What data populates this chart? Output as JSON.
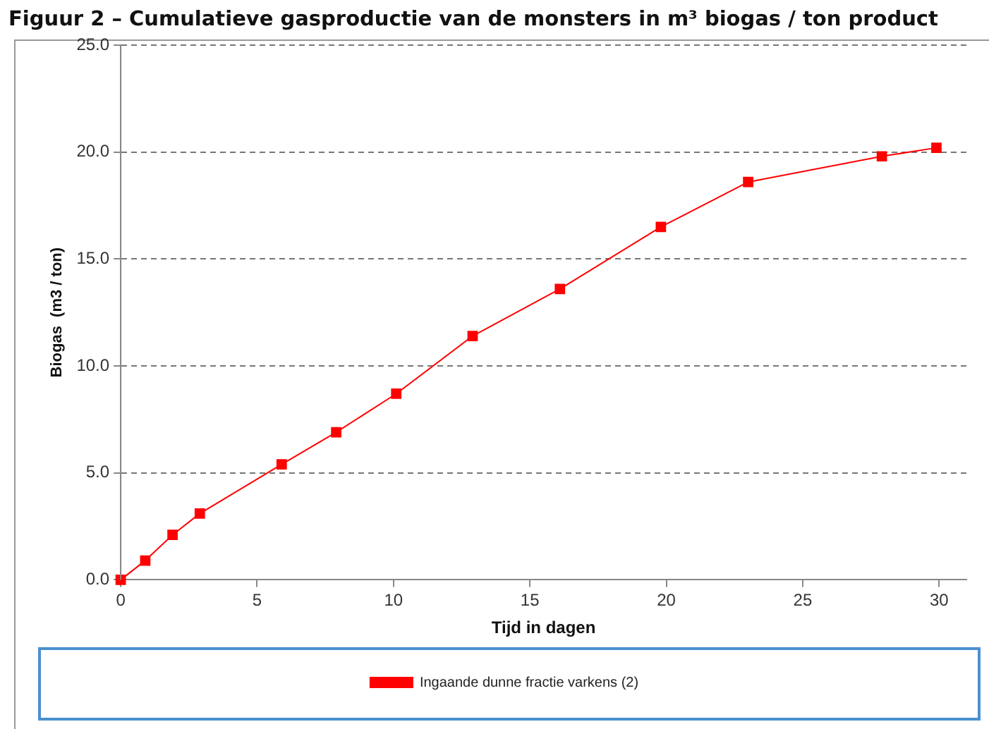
{
  "chart_data": {
    "type": "line",
    "title": "Figuur 2 – Cumulatieve gasproductie van de monsters in m³ biogas / ton product",
    "xlabel": "Tijd in dagen",
    "ylabel": "Biogas  (m3 / ton)",
    "x": [
      0,
      0.9,
      1.9,
      2.9,
      5.9,
      7.9,
      10.1,
      12.9,
      16.1,
      19.8,
      23.0,
      27.9,
      29.9
    ],
    "series": [
      {
        "name": "Ingaande dunne fractie varkens (2)",
        "color": "#ff0000",
        "values": [
          0,
          0.9,
          2.1,
          3.1,
          5.4,
          6.9,
          8.7,
          11.4,
          13.6,
          16.5,
          18.6,
          19.8,
          20.2
        ]
      }
    ],
    "xlim": [
      0,
      31
    ],
    "xticks": [
      0,
      5,
      10,
      15,
      20,
      25,
      30
    ],
    "ylim": [
      0,
      25
    ],
    "yticks": [
      {
        "value": 0,
        "label": "0.0"
      },
      {
        "value": 5,
        "label": "5.0"
      },
      {
        "value": 10,
        "label": "10.0"
      },
      {
        "value": 15,
        "label": "15.0"
      },
      {
        "value": 20,
        "label": "20.0"
      },
      {
        "value": 25,
        "label": "25.0"
      }
    ],
    "grid": "y",
    "legend": "bottom",
    "marker": "square",
    "line_style": "solid"
  }
}
